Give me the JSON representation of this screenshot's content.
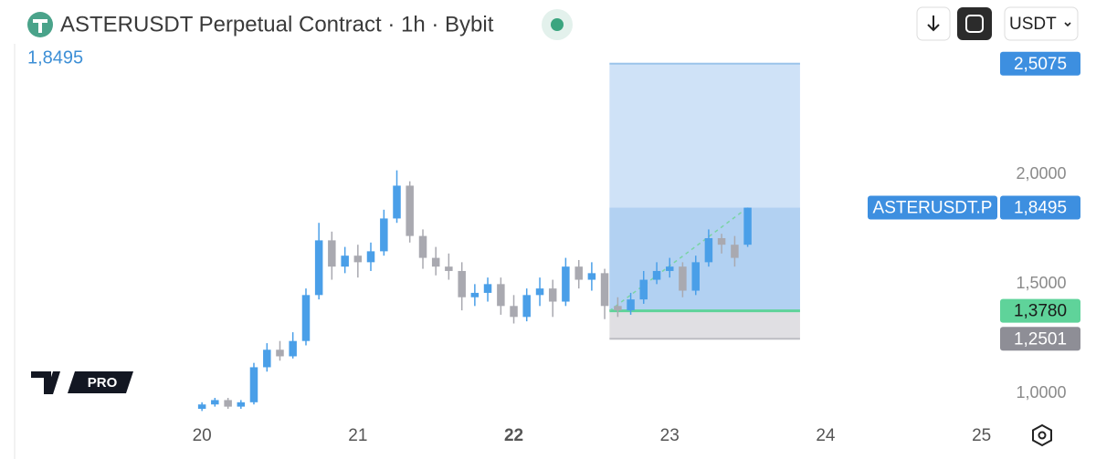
{
  "header": {
    "title": "ASTERUSDT Perpetual Contract · 1h · Bybit",
    "currency": "USDT"
  },
  "logo": "PRO",
  "chart_data": {
    "type": "candlestick",
    "x": [
      20,
      20.083,
      20.167,
      20.25,
      20.333,
      20.417,
      20.5,
      20.583,
      20.667,
      20.75,
      20.833,
      20.917,
      21,
      21.083,
      21.167,
      21.25,
      21.333,
      21.417,
      21.5,
      21.583,
      21.667,
      21.75,
      21.833,
      21.917,
      22,
      22.083,
      22.167,
      22.25,
      22.333,
      22.417,
      22.5,
      22.583,
      22.667,
      22.75,
      22.833,
      22.917,
      23,
      23.083,
      23.167,
      23.25,
      23.333,
      23.417,
      23.5
    ],
    "open": [
      0.93,
      0.95,
      0.97,
      0.94,
      0.96,
      1.12,
      1.2,
      1.17,
      1.24,
      1.45,
      1.7,
      1.58,
      1.63,
      1.6,
      1.65,
      1.8,
      1.95,
      1.72,
      1.62,
      1.58,
      1.56,
      1.44,
      1.46,
      1.5,
      1.4,
      1.35,
      1.45,
      1.48,
      1.42,
      1.58,
      1.52,
      1.55,
      1.4,
      1.38,
      1.43,
      1.52,
      1.56,
      1.58,
      1.47,
      1.6,
      1.71,
      1.68,
      1.68
    ],
    "high": [
      0.96,
      0.98,
      0.98,
      0.97,
      1.14,
      1.23,
      1.24,
      1.28,
      1.48,
      1.78,
      1.74,
      1.67,
      1.68,
      1.69,
      1.84,
      2.02,
      1.97,
      1.75,
      1.67,
      1.64,
      1.6,
      1.5,
      1.53,
      1.53,
      1.45,
      1.48,
      1.53,
      1.52,
      1.62,
      1.61,
      1.6,
      1.57,
      1.44,
      1.46,
      1.56,
      1.6,
      1.62,
      1.6,
      1.63,
      1.75,
      1.73,
      1.72,
      1.85
    ],
    "low": [
      0.92,
      0.94,
      0.93,
      0.93,
      0.95,
      1.1,
      1.15,
      1.16,
      1.22,
      1.43,
      1.52,
      1.55,
      1.53,
      1.56,
      1.63,
      1.78,
      1.69,
      1.57,
      1.54,
      1.52,
      1.38,
      1.4,
      1.42,
      1.36,
      1.32,
      1.33,
      1.4,
      1.35,
      1.4,
      1.48,
      1.47,
      1.34,
      1.35,
      1.36,
      1.41,
      1.5,
      1.53,
      1.44,
      1.45,
      1.58,
      1.64,
      1.58,
      1.67
    ],
    "close": [
      0.95,
      0.97,
      0.94,
      0.96,
      1.12,
      1.2,
      1.17,
      1.24,
      1.45,
      1.7,
      1.58,
      1.63,
      1.6,
      1.65,
      1.8,
      1.95,
      1.72,
      1.62,
      1.58,
      1.56,
      1.44,
      1.46,
      1.5,
      1.4,
      1.35,
      1.45,
      1.48,
      1.42,
      1.58,
      1.52,
      1.55,
      1.4,
      1.38,
      1.43,
      1.52,
      1.56,
      1.58,
      1.47,
      1.6,
      1.71,
      1.68,
      1.62,
      1.8495
    ],
    "up_color": "#4a9fe8",
    "down_color": "#a9a9b0",
    "xlim": [
      18.81,
      25.09
    ],
    "ylim": [
      0.88,
      2.59
    ],
    "xticks": [
      20,
      21,
      22,
      23,
      24,
      25
    ],
    "yticks": [
      {
        "value": 1,
        "label": "1,0000"
      },
      {
        "value": 1.5,
        "label": "1,5000"
      },
      {
        "value": 2,
        "label": "2,0000"
      }
    ],
    "symbol_label": "ASTERUSDT.P",
    "last_price": {
      "value": 1.8495,
      "label": "1,8495"
    },
    "position": {
      "x": [
        22.614,
        23.836
      ],
      "target": {
        "value": 2.5075,
        "label": "2,5075"
      },
      "entry": {
        "value": 1.378,
        "label": "1,3780"
      },
      "stop": {
        "value": 1.2501,
        "label": "1,2501"
      }
    }
  }
}
